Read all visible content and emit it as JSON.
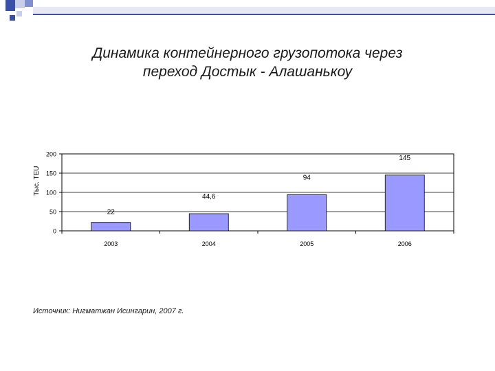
{
  "title_line1": "Динамика контейнерного грузопотока через",
  "title_line2": "переход Достык - Алашанькоу",
  "source": "Источник: Нигматжан Исингарин, 2007 г.",
  "colors": {
    "bar_fill": "#9999ff",
    "deco_blue": "#3a4fa8",
    "deco_light": "#c9cfe8"
  },
  "chart_data": {
    "type": "bar",
    "title": "",
    "ylabel": "Тыс. TEU",
    "xlabel": "",
    "categories": [
      "2003",
      "2004",
      "2005",
      "2006"
    ],
    "values": [
      22,
      44.6,
      94,
      145
    ],
    "data_labels": [
      "22",
      "44,6",
      "94",
      "145"
    ],
    "ylim": [
      0,
      200
    ],
    "yticks": [
      "0",
      "50",
      "100",
      "150",
      "200"
    ],
    "grid": true,
    "legend": "none"
  }
}
